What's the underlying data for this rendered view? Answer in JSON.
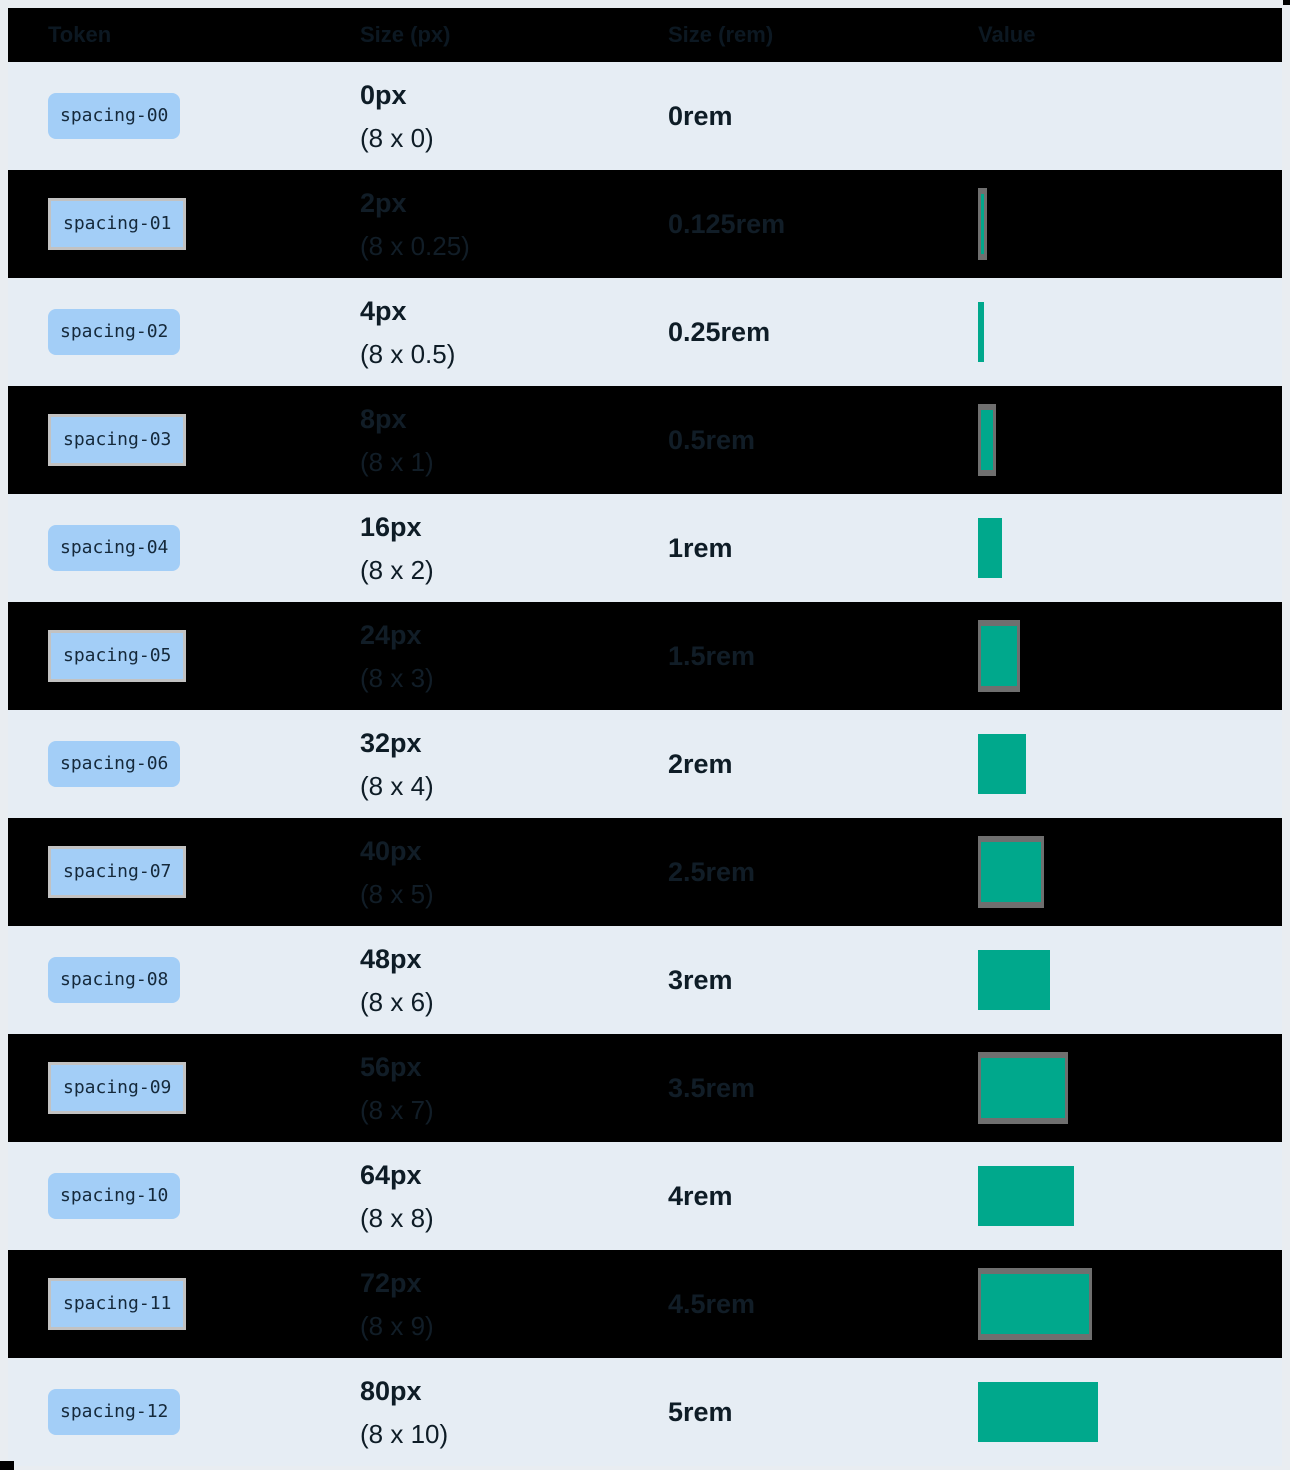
{
  "header": {
    "columns": [
      {
        "label": "Token"
      },
      {
        "label": "Size (px)"
      },
      {
        "label": "Size (rem)"
      },
      {
        "label": "Value"
      }
    ]
  },
  "rows": [
    {
      "token": "spacing-00",
      "px": "0px",
      "multiplier": "(8 x 0)",
      "rem": "0rem",
      "swatch_width": 0,
      "variant": "light"
    },
    {
      "token": "spacing-01",
      "px": "2px",
      "multiplier": "(8 x 0.25)",
      "rem": "0.125rem",
      "swatch_width": 3,
      "variant": "dark"
    },
    {
      "token": "spacing-02",
      "px": "4px",
      "multiplier": "(8 x 0.5)",
      "rem": "0.25rem",
      "swatch_width": 6,
      "variant": "light"
    },
    {
      "token": "spacing-03",
      "px": "8px",
      "multiplier": "(8 x 1)",
      "rem": "0.5rem",
      "swatch_width": 12,
      "variant": "dark"
    },
    {
      "token": "spacing-04",
      "px": "16px",
      "multiplier": "(8 x 2)",
      "rem": "1rem",
      "swatch_width": 24,
      "variant": "light"
    },
    {
      "token": "spacing-05",
      "px": "24px",
      "multiplier": "(8 x 3)",
      "rem": "1.5rem",
      "swatch_width": 36,
      "variant": "dark"
    },
    {
      "token": "spacing-06",
      "px": "32px",
      "multiplier": "(8 x 4)",
      "rem": "2rem",
      "swatch_width": 48,
      "variant": "light"
    },
    {
      "token": "spacing-07",
      "px": "40px",
      "multiplier": "(8 x 5)",
      "rem": "2.5rem",
      "swatch_width": 60,
      "variant": "dark"
    },
    {
      "token": "spacing-08",
      "px": "48px",
      "multiplier": "(8 x 6)",
      "rem": "3rem",
      "swatch_width": 72,
      "variant": "light"
    },
    {
      "token": "spacing-09",
      "px": "56px",
      "multiplier": "(8 x 7)",
      "rem": "3.5rem",
      "swatch_width": 84,
      "variant": "dark"
    },
    {
      "token": "spacing-10",
      "px": "64px",
      "multiplier": "(8 x 8)",
      "rem": "4rem",
      "swatch_width": 96,
      "variant": "light"
    },
    {
      "token": "spacing-11",
      "px": "72px",
      "multiplier": "(8 x 9)",
      "rem": "4.5rem",
      "swatch_width": 108,
      "variant": "dark"
    },
    {
      "token": "spacing-12",
      "px": "80px",
      "multiplier": "(8 x 10)",
      "rem": "5rem",
      "swatch_width": 120,
      "variant": "light"
    }
  ],
  "colors": {
    "swatch_teal": "#00a88c",
    "chip_blue": "#a3cef7",
    "chip_text": "#15293b",
    "light_row_bg": "#e6edf4",
    "dark_row_bg": "#000000",
    "dark_row_ghost_text": "#111d27",
    "swatch_border_gray": "#6f6f6f",
    "chip_border_gray": "#c2c2c2",
    "page_bg": "#e9edf1"
  }
}
